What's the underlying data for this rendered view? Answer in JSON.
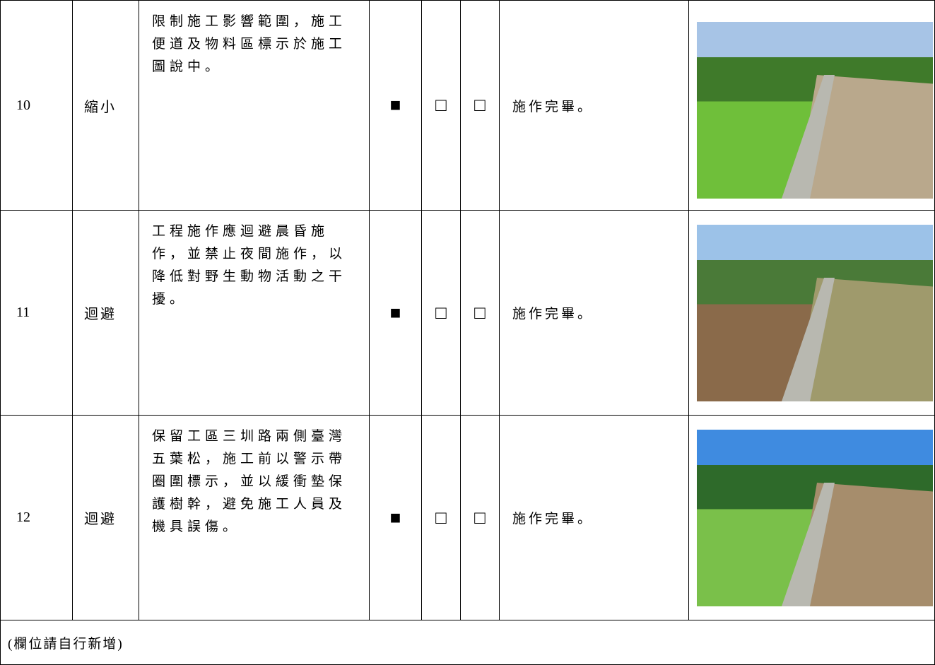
{
  "table": {
    "rows": [
      {
        "no": "10",
        "method": "縮小",
        "description": [
          "限制施工影響範圍，施工",
          "便道及物料區標示於施工",
          "圖說中。"
        ],
        "checks": [
          "■",
          "□",
          "□"
        ],
        "status": "施作完畢。"
      },
      {
        "no": "11",
        "method": "迴避",
        "description": [
          "工程施作應迴避晨昏施",
          "作，並禁止夜間施作，以",
          "降低對野生動物活動之干",
          "擾。"
        ],
        "checks": [
          "■",
          "□",
          "□"
        ],
        "status": "施作完畢。"
      },
      {
        "no": "12",
        "method": "迴避",
        "description": [
          "保留工區三圳路兩側臺灣",
          "五葉松，施工前以警示帶",
          "圈圍標示，並以緩衝墊保",
          "護樹幹，避免施工人員及",
          "機具誤傷。"
        ],
        "checks": [
          "■",
          "□",
          "□"
        ],
        "status": "施作完畢。"
      }
    ],
    "footer": "(欄位請自行新增)"
  }
}
